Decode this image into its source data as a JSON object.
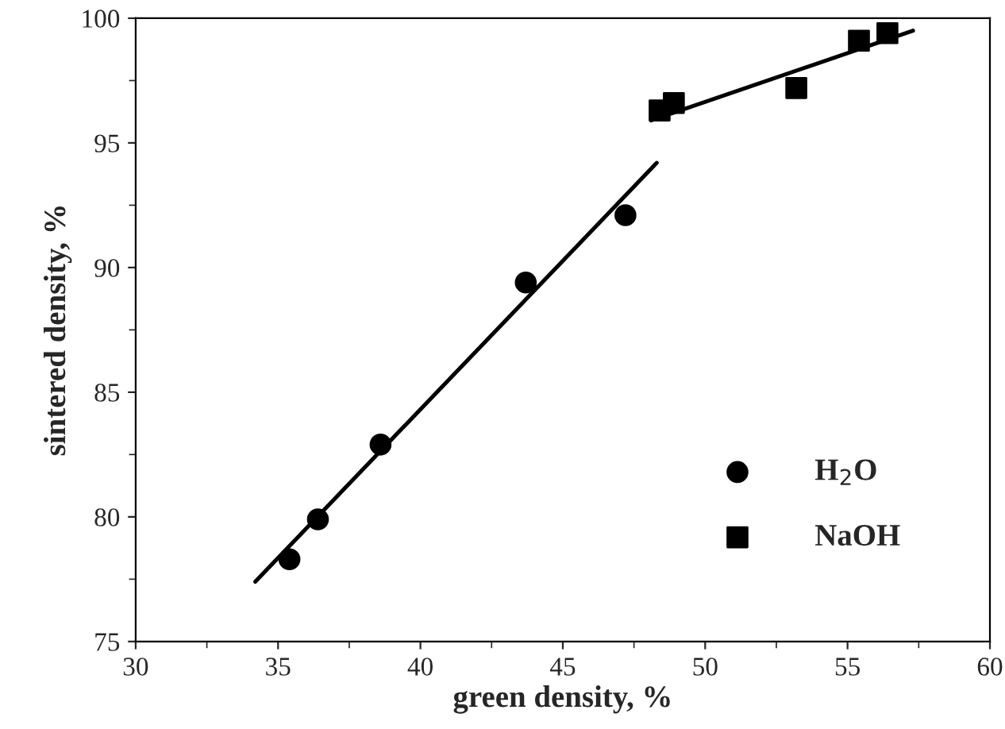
{
  "chart_data": {
    "type": "scatter",
    "xlabel": "green density, %",
    "ylabel": "sintered density, %",
    "xlim": [
      30,
      60
    ],
    "xticks": [
      30,
      35,
      40,
      45,
      50,
      55,
      60
    ],
    "ylim": [
      75,
      100
    ],
    "yticks": [
      75,
      80,
      85,
      90,
      95,
      100
    ],
    "grid": false,
    "legend": "bottom right",
    "series": [
      {
        "name": "H$_{2}$O",
        "marker": "circle",
        "color": "#000000",
        "x": [
          35.4,
          36.4,
          38.6,
          43.7,
          47.2
        ],
        "values": [
          78.3,
          79.9,
          82.9,
          89.4,
          92.1
        ]
      },
      {
        "name": "NaOH",
        "marker": "square",
        "color": "#000000",
        "x": [
          48.4,
          48.9,
          53.2,
          55.4,
          56.4
        ],
        "values": [
          96.3,
          96.6,
          97.2,
          99.1,
          99.4
        ]
      },
      {
        "type": "line",
        "marker": "none",
        "line_style": "solid",
        "color": "#000000",
        "x": [
          34.2,
          48.3
        ],
        "values": [
          77.4,
          94.2
        ]
      },
      {
        "type": "line",
        "marker": "none",
        "line_style": "solid",
        "color": "#000000",
        "x": [
          48.1,
          57.3
        ],
        "values": [
          95.9,
          99.5
        ]
      }
    ]
  }
}
